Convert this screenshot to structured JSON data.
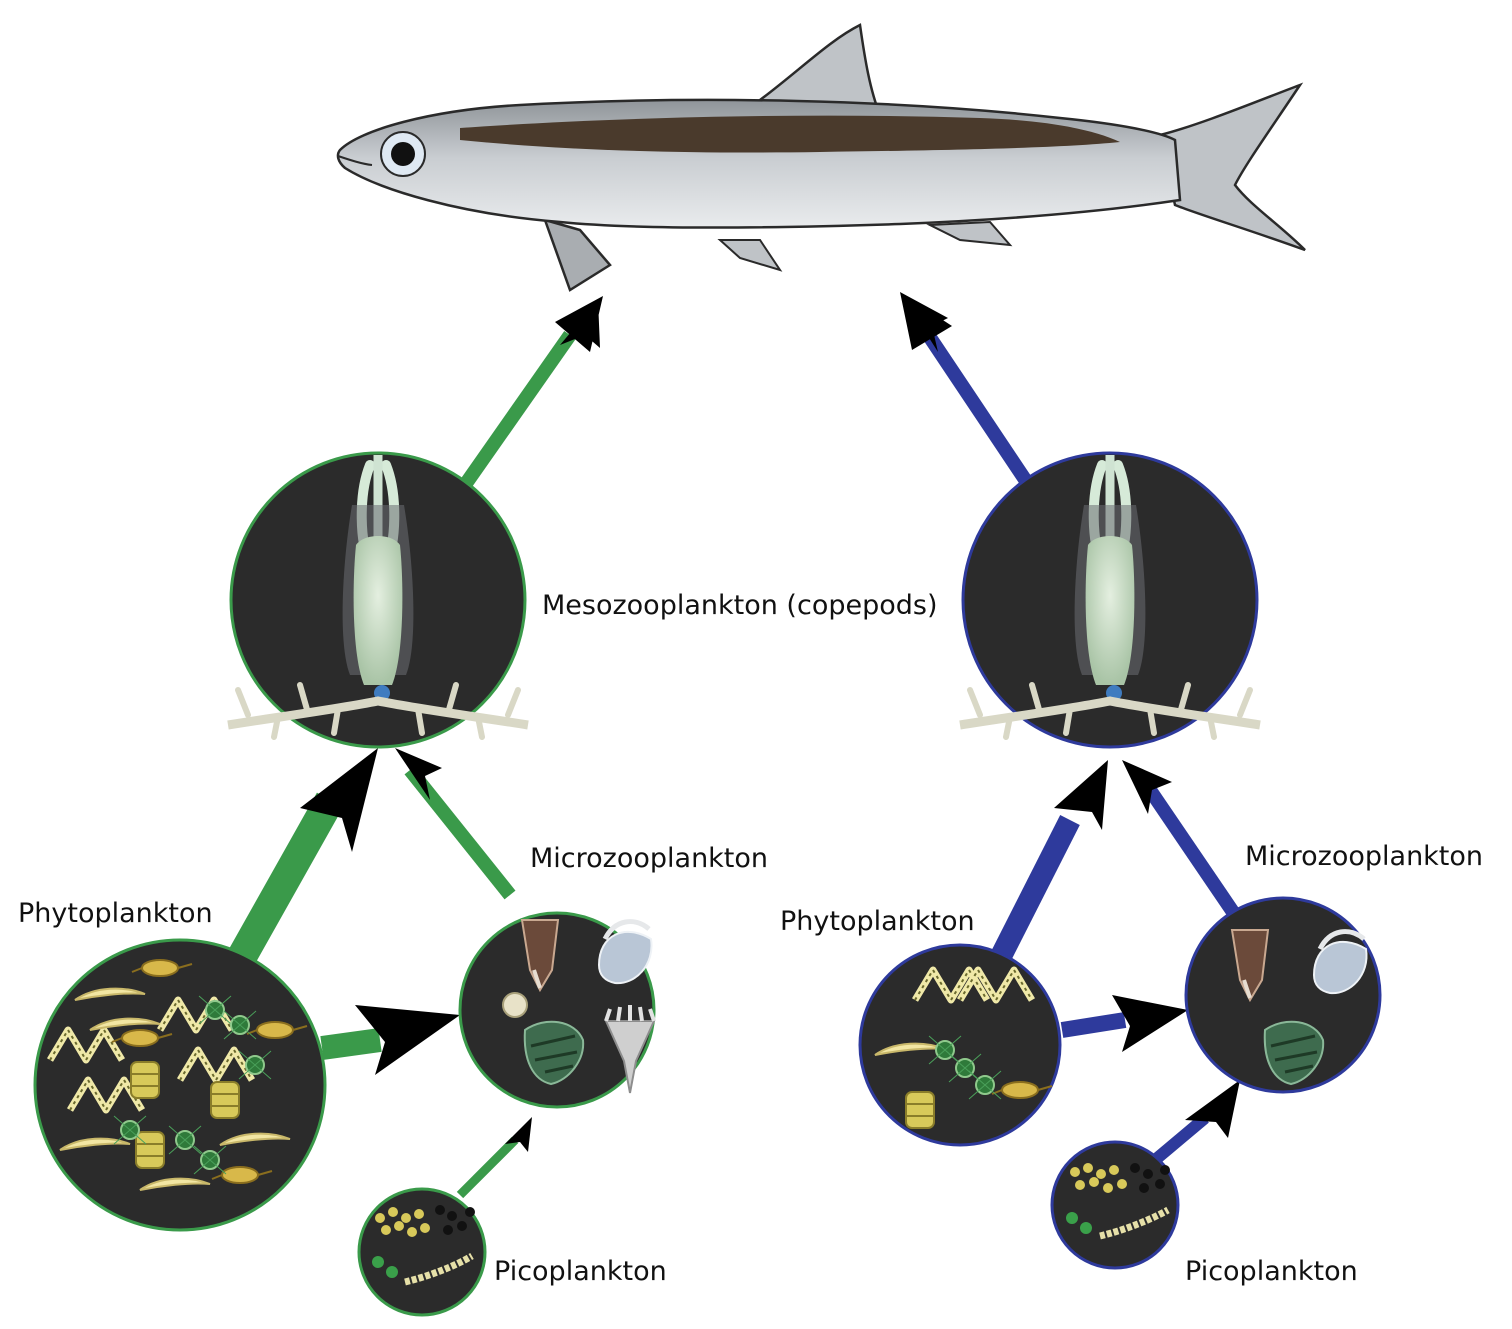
{
  "labels": {
    "mesozooplankton": "Mesozooplankton (copepods)",
    "left_microzooplankton": "Microzooplankton",
    "left_phytoplankton": "Phytoplankton",
    "left_picoplankton": "Picoplankton",
    "right_microzooplankton": "Microzooplankton",
    "right_phytoplankton": "Phytoplankton",
    "right_picoplankton": "Picoplankton"
  },
  "colors": {
    "left_pathway": "#3a9a4a",
    "right_pathway": "#2e3a9c",
    "circle_fill": "#2b2b2b",
    "fish_body": "#b3b7bb",
    "fish_stripe": "#4a3a2c",
    "arrowhead": "#000000"
  },
  "icons": {
    "fish": "anchovy-fish-icon",
    "copepod": "copepod-icon",
    "phytoplankton": "phytoplankton-cells-icon",
    "microzooplankton": "ciliates-icon",
    "picoplankton": "picoplankton-cells-icon"
  }
}
